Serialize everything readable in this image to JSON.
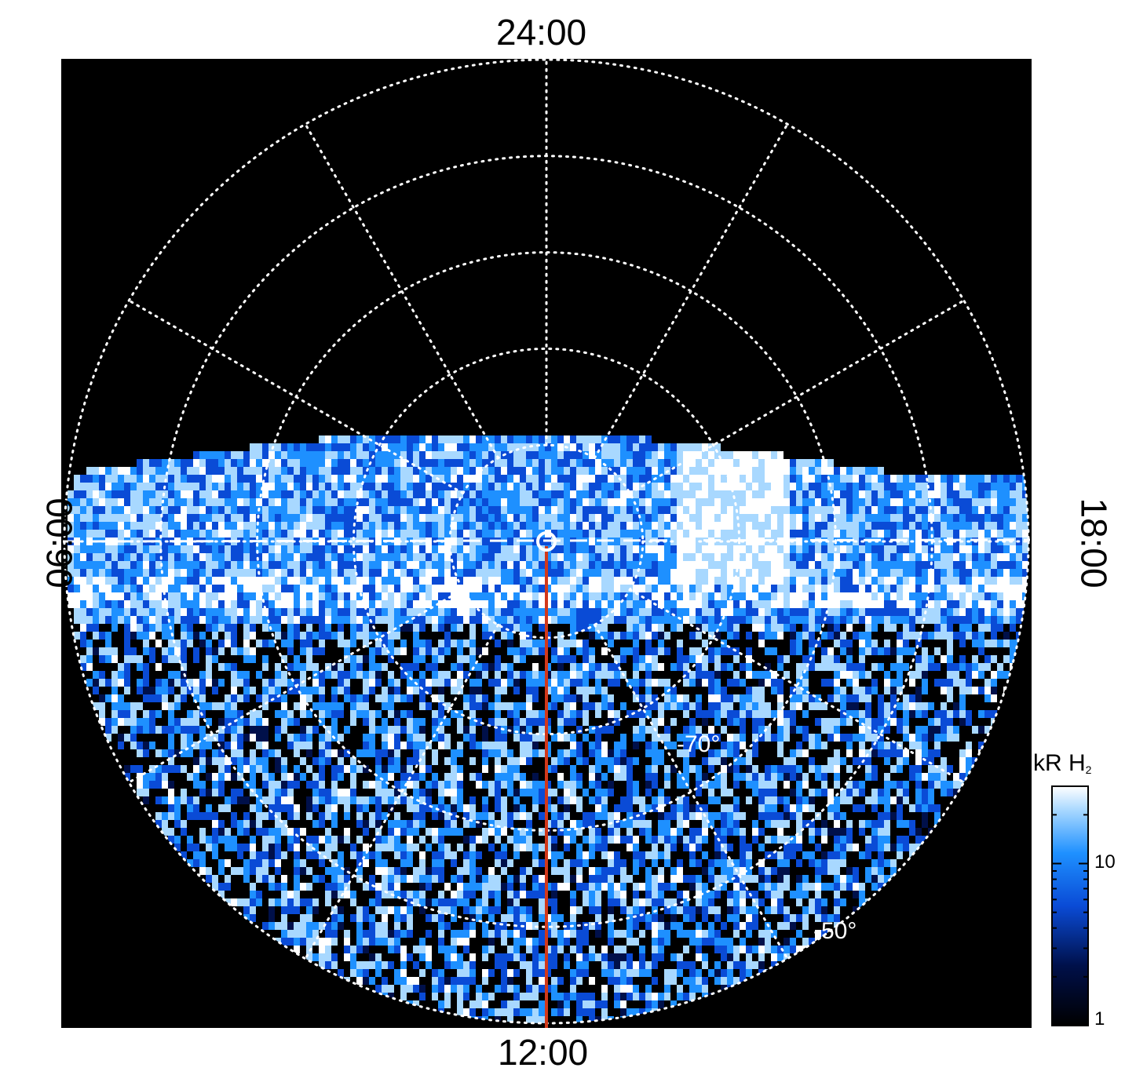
{
  "local_time_labels": {
    "top": "24:00",
    "bottom": "12:00",
    "left": "06:00",
    "right": "18:00"
  },
  "latitude_labels": [
    {
      "text": "-70°"
    },
    {
      "text": "-50°"
    }
  ],
  "colorbar": {
    "title_main": "kR H",
    "title_sub": "2",
    "ticks": [
      "10",
      "1"
    ],
    "scale": "log",
    "range": [
      1,
      30
    ],
    "colors": [
      "#000000",
      "#00104a",
      "#0a4bd6",
      "#1e90ff",
      "#a8d8ff",
      "#ffffff"
    ]
  },
  "chart_data": {
    "type": "heatmap",
    "projection": "polar (south pole, local time vs latitude)",
    "title": "",
    "colorbar_label": "kR H2",
    "color_scale": "log",
    "zlim": [
      1,
      30
    ],
    "latitude_circles_deg": [
      -90,
      -80,
      -70,
      -60,
      -50,
      -40
    ],
    "meridians_every_hours": 2,
    "grid": true,
    "grid_style": "dotted white",
    "annotations": {
      "pole_marker": "circle at pole",
      "noon_meridian_line": {
        "color": "#d2381a",
        "from": "pole",
        "to": "12:00"
      },
      "dashed_line": "06:00–18:00 terminator"
    },
    "emission_band": {
      "description": "auroral oval band of emission across 06:00–18:00 sector near dawn/dusk line",
      "peak_kR": 30,
      "brightest_sector_local_time": "16:00–17:00"
    }
  },
  "colors": {
    "background": "#000000",
    "grid": "#ffffff",
    "noon_line": "#d2381a",
    "page": "#ffffff"
  }
}
